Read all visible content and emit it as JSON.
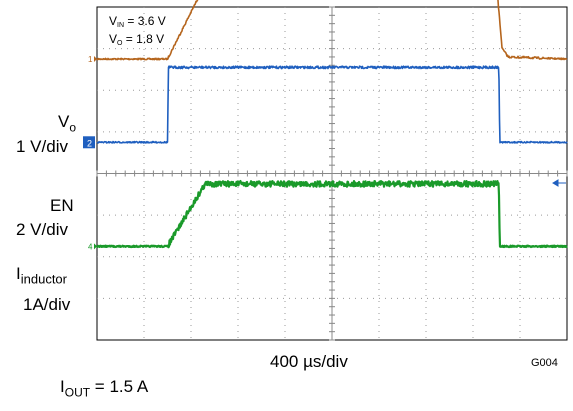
{
  "chart_data": {
    "type": "line",
    "title": "",
    "x_scale": "400 µs/div",
    "divisions": {
      "x": 10,
      "y": 8
    },
    "annotations": {
      "vin": {
        "base": "V",
        "sub": "IN",
        "rest": " = 3.6 V"
      },
      "vo": {
        "base": "V",
        "sub": "O",
        "rest": " = 1.8 V"
      }
    },
    "figure_id": "G004",
    "caption": {
      "base": "I",
      "sub": "OUT",
      "rest": " = 1.5 A"
    },
    "channel_labels": {
      "vo": {
        "name_base": "V",
        "name_sub": "o",
        "scale": "1 V/div"
      },
      "en": {
        "name": "EN",
        "scale": "2 V/div"
      },
      "il": {
        "name_base": "I",
        "name_sub": "inductor",
        "scale": "1A/div"
      }
    },
    "channels": [
      {
        "id": "vo",
        "marker": "1",
        "color": "#b5651d",
        "units_per_div": 1.0,
        "ground_div": 2.75,
        "x_div": [
          0,
          1.5,
          2.3,
          8.5,
          8.62,
          8.75,
          10
        ],
        "y_units": [
          0,
          0,
          1.8,
          1.8,
          0.25,
          0.05,
          0
        ]
      },
      {
        "id": "en",
        "marker": "2",
        "color": "#1f5fbf",
        "units_per_div": 2.0,
        "ground_div": 0.75,
        "x_div": [
          0,
          1.5,
          1.52,
          8.55,
          8.57,
          10
        ],
        "y_units": [
          0,
          0,
          3.6,
          3.6,
          0,
          0
        ]
      },
      {
        "id": "il",
        "marker": "4",
        "color": "#1a9a2a",
        "units_per_div": 1.0,
        "ground_div": -1.75,
        "x_div": [
          0,
          1.5,
          2.3,
          8.55,
          8.57,
          10
        ],
        "y_units": [
          0,
          0,
          1.5,
          1.5,
          0,
          0
        ]
      }
    ]
  }
}
